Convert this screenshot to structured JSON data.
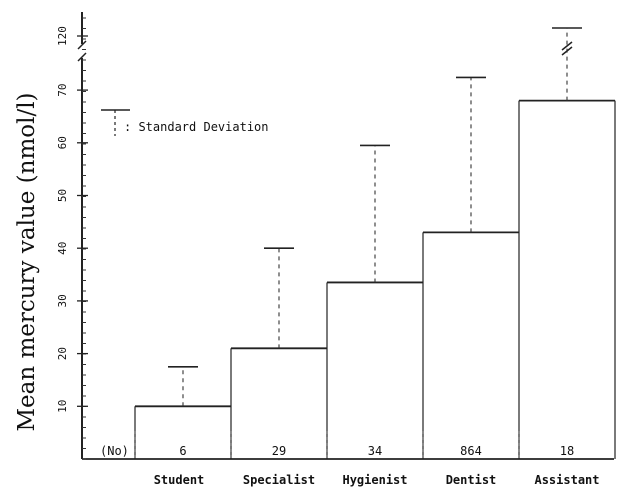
{
  "chart_data": {
    "type": "bar",
    "ylabel": "Mean mercury value (nmol/l)",
    "categories": [
      "Student",
      "Specialist",
      "Hygienist",
      "Dentist",
      "Assistant"
    ],
    "counts_label": "(No)",
    "counts": [
      "6",
      "29",
      "34",
      "864",
      "18"
    ],
    "values": [
      10,
      21,
      33.5,
      43,
      68
    ],
    "sd_upper": [
      17.5,
      40,
      59.5,
      74,
      120
    ],
    "y_ticks": [
      "10",
      "20",
      "30",
      "40",
      "50",
      "60",
      "70",
      "120"
    ],
    "ylim": [
      0,
      125
    ],
    "axis_break": true,
    "legend": {
      "label": ": Standard Deviation",
      "position": "top-left"
    },
    "grid": false
  }
}
